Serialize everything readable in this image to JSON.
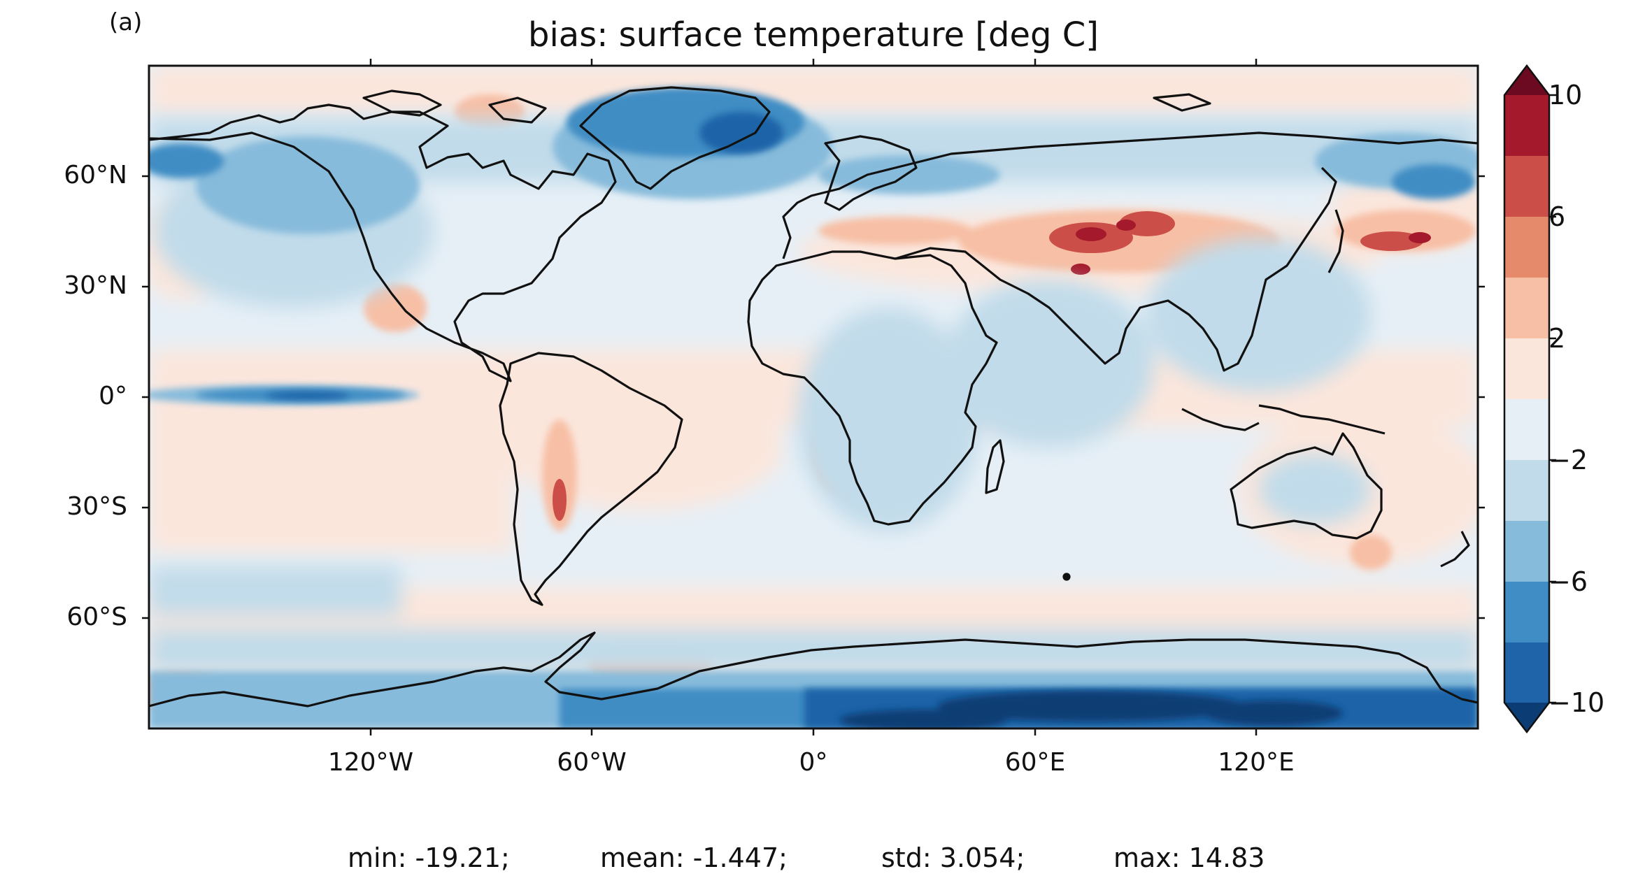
{
  "figure": {
    "panel_label": "(a)",
    "title": "bias: surface temperature [deg C]",
    "stats": {
      "min": "min: -19.21;",
      "mean": "mean: -1.447;",
      "std": "std: 3.054;",
      "max": "max: 14.83"
    }
  },
  "axes": {
    "lat_labels": [
      "60°N",
      "30°N",
      "0°",
      "30°S",
      "60°S"
    ],
    "lon_labels": [
      "120°W",
      "60°W",
      "0°",
      "60°E",
      "120°E"
    ]
  },
  "colorbar": {
    "tick_labels": [
      "10",
      "6",
      "2",
      "−2",
      "−6",
      "−10"
    ],
    "levels": [
      -10,
      -8,
      -6,
      -4,
      -2,
      0,
      2,
      4,
      6,
      8,
      10
    ],
    "extend": "both",
    "colors": [
      "#0b3c73",
      "#1f64a8",
      "#3f8dc4",
      "#87bbdb",
      "#c1dbea",
      "#e6eff6",
      "#fbe6dc",
      "#f7bfa5",
      "#e68a6c",
      "#cb4f48",
      "#a5192c",
      "#6b0a20"
    ]
  }
}
